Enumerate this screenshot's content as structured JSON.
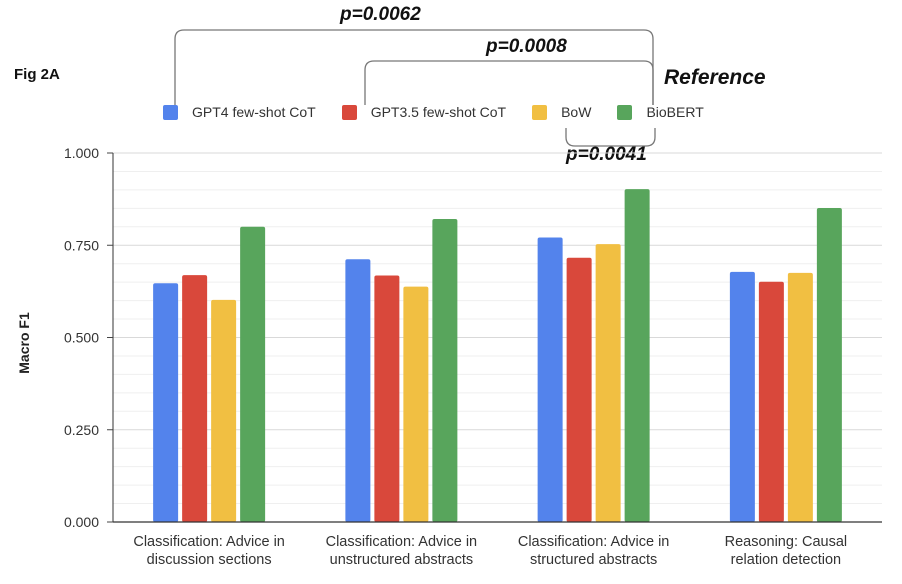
{
  "figure_label": "Fig 2A",
  "reference_label": "Reference",
  "significance": [
    {
      "label": "p=0.0062"
    },
    {
      "label": "p=0.0008"
    },
    {
      "label": "p=0.0041"
    }
  ],
  "colors": {
    "gpt4": "#5383ec",
    "gpt35": "#d9483b",
    "bow": "#f1bf42",
    "biobert": "#58a55c",
    "grid": "#e6e6e6",
    "axis": "#222222"
  },
  "chart_data": {
    "type": "bar",
    "ylabel": "Macro F1",
    "xlabel": "",
    "ylim": [
      0,
      1
    ],
    "yticks": [
      "0.000",
      "0.250",
      "0.500",
      "0.750",
      "1.000"
    ],
    "categories": [
      [
        "Classification: Advice in",
        "discussion sections"
      ],
      [
        "Classification: Advice in",
        "unstructured abstracts"
      ],
      [
        "Classification: Advice in",
        "structured abstracts"
      ],
      [
        "Reasoning: Causal",
        "relation detection"
      ]
    ],
    "series": [
      {
        "name": "GPT4 few-shot CoT",
        "color": "#5383ec",
        "values": [
          0.647,
          0.712,
          0.771,
          0.678
        ]
      },
      {
        "name": "GPT3.5 few-shot CoT",
        "color": "#d9483b",
        "values": [
          0.669,
          0.668,
          0.716,
          0.651
        ]
      },
      {
        "name": "BoW",
        "color": "#f1bf42",
        "values": [
          0.602,
          0.638,
          0.753,
          0.675
        ]
      },
      {
        "name": "BioBERT",
        "color": "#58a55c",
        "values": [
          0.8,
          0.821,
          0.902,
          0.851
        ]
      }
    ],
    "grid": true,
    "legend_position": "top"
  }
}
